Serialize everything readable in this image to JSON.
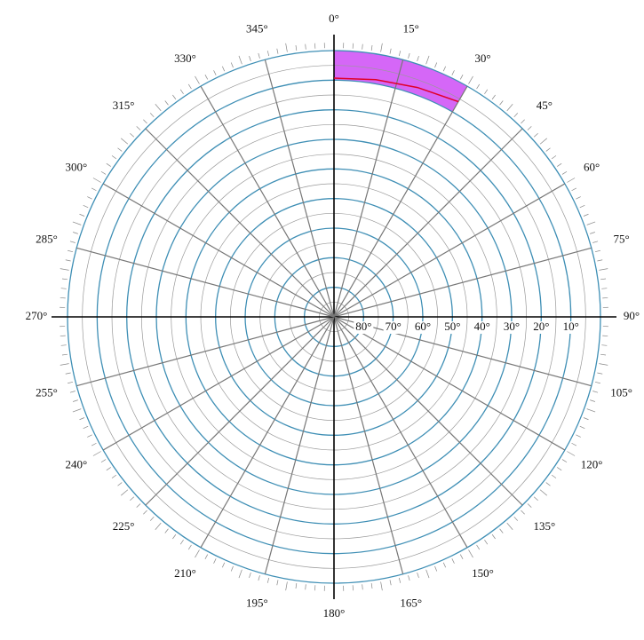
{
  "azimuth_labels": [
    "0°",
    "15°",
    "30°",
    "45°",
    "60°",
    "75°",
    "90°",
    "105°",
    "120°",
    "135°",
    "150°",
    "165°",
    "180°",
    "195°",
    "210°",
    "225°",
    "240°",
    "255°",
    "270°",
    "285°",
    "300°",
    "315°",
    "330°",
    "345°"
  ],
  "altitude_labels": [
    "80°",
    "70°",
    "60°",
    "50°",
    "40°",
    "30°",
    "20°",
    "10°"
  ],
  "band": {
    "az_start": 0,
    "az_end": 30,
    "alt_min": 0,
    "alt_max": 10,
    "color": "#d35ff7"
  },
  "curve": {
    "color": "#e0002a",
    "az": [
      0,
      10,
      20,
      30
    ],
    "alt": [
      9.3,
      8.6,
      7.5,
      6
    ]
  }
}
